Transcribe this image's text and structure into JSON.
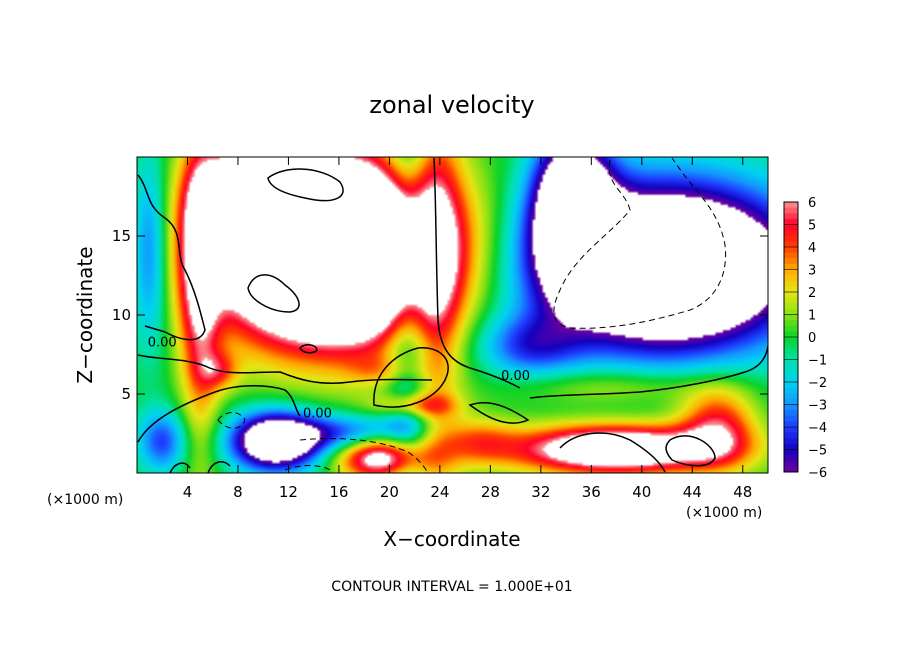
{
  "chart_data": {
    "type": "heatmap",
    "title": "zonal velocity",
    "xlabel": "X−coordinate",
    "ylabel": "Z−coordinate",
    "x_unit": "(×1000 m)",
    "y_unit": "(×1000 m)",
    "xlim": [
      0,
      50
    ],
    "ylim": [
      0,
      20
    ],
    "x_ticks": [
      4,
      8,
      12,
      16,
      20,
      24,
      28,
      32,
      36,
      40,
      44,
      48
    ],
    "y_ticks": [
      5,
      10,
      15
    ],
    "colorbar": {
      "min": -6,
      "max": 6,
      "ticks": [
        "6",
        "5",
        "4",
        "3",
        "2",
        "1",
        "0",
        "−1",
        "−2",
        "−3",
        "−4",
        "−5",
        "−6"
      ],
      "values": [
        6,
        5,
        4,
        3,
        2,
        1,
        0,
        -1,
        -2,
        -3,
        -4,
        -5,
        -6
      ],
      "out_of_range_color": "#ffffff"
    },
    "contour_labels": [
      {
        "text": "0.00",
        "x": 2.0,
        "z": 8.0
      },
      {
        "text": "0.00",
        "x": 14.3,
        "z": 3.5
      },
      {
        "text": "0.00",
        "x": 30.0,
        "z": 5.9
      }
    ],
    "footer": "CONTOUR INTERVAL = 1.000E+01"
  },
  "colors": {
    "background": "#ffffff",
    "axis": "#000000",
    "contour": "#000000"
  }
}
